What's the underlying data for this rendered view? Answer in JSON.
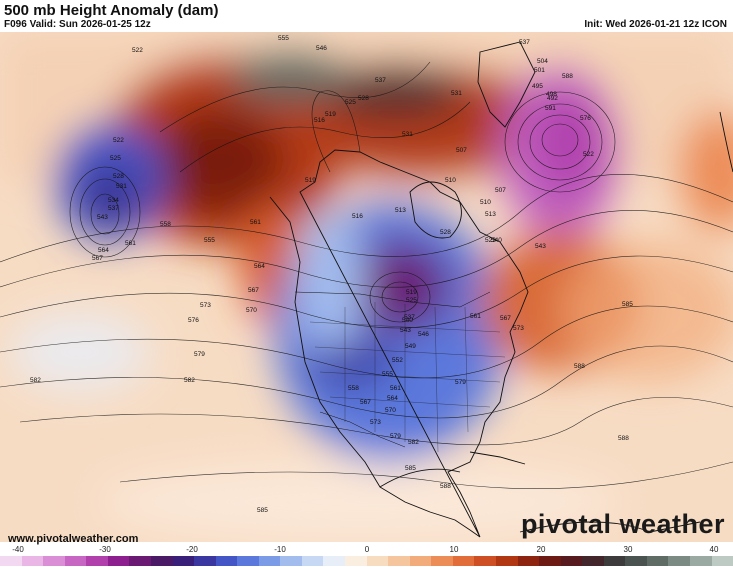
{
  "header": {
    "title": "500 mb Height Anomaly (dam)",
    "valid": "F096 Valid: Sun 2026-01-25 12z",
    "init": "Init: Wed 2026-01-21 12z ICON"
  },
  "footer": {
    "website": "www.pivotalweather.com",
    "brand": "pivotal weather"
  },
  "colorbar": {
    "ticks": [
      "-40",
      "-30",
      "-20",
      "-10",
      "0",
      "10",
      "20",
      "30",
      "40"
    ],
    "colors": [
      "#f2d8f0",
      "#e9b6e6",
      "#d98ed6",
      "#c767c3",
      "#b140ad",
      "#8e1f8f",
      "#6b1a74",
      "#4a1a66",
      "#3a1f7a",
      "#3b37a0",
      "#4455c6",
      "#5b78dc",
      "#7c9be6",
      "#a2bcee",
      "#c7d8f5",
      "#e8eef8",
      "#faeee0",
      "#f8dcc0",
      "#f5c59d",
      "#f2ab7a",
      "#ec8d58",
      "#e06d3a",
      "#cd4f23",
      "#b13612",
      "#8d2410",
      "#6c1a13",
      "#561a1f",
      "#42262c",
      "#3d3b3c",
      "#4a5350",
      "#5f6c66",
      "#7b8a83",
      "#9aaaa2",
      "#bccac3"
    ]
  },
  "map": {
    "contour_labels": [
      "522",
      "525",
      "528",
      "531",
      "534",
      "537",
      "540",
      "543",
      "546",
      "549",
      "552",
      "555",
      "558",
      "561",
      "564",
      "567",
      "570",
      "573",
      "576",
      "579",
      "582",
      "585",
      "588",
      "591",
      "492",
      "495",
      "498",
      "501",
      "504",
      "507",
      "510",
      "513",
      "516",
      "519"
    ]
  }
}
